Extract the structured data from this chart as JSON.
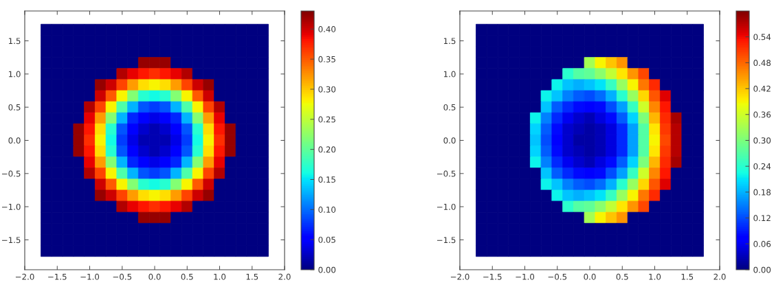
{
  "chart_data": [
    {
      "type": "heatmap",
      "x": [
        -1.667,
        -1.5,
        -1.333,
        -1.167,
        -1,
        -0.833,
        -0.667,
        -0.5,
        -0.333,
        -0.167,
        0,
        0.167,
        0.333,
        0.5,
        0.667,
        0.833,
        1,
        1.167,
        1.333,
        1.5,
        1.667
      ],
      "y": [
        1.667,
        1.5,
        1.333,
        1.167,
        1,
        0.833,
        0.667,
        0.5,
        0.333,
        0.167,
        0,
        -0.167,
        -0.333,
        -0.5,
        -0.667,
        -0.833,
        -1,
        -1.167,
        -1.333,
        -1.5,
        -1.667
      ],
      "cells": [
        [
          0,
          0,
          0,
          0,
          0,
          0,
          0,
          0,
          0,
          0,
          0,
          0,
          0,
          0,
          0,
          0,
          0,
          0,
          0,
          0,
          0
        ],
        [
          0,
          0,
          0,
          0,
          0,
          0,
          0,
          0,
          0,
          0,
          0,
          0,
          0,
          0,
          0,
          0,
          0,
          0,
          0,
          0,
          0
        ],
        [
          0,
          0,
          0,
          0,
          0,
          0,
          0,
          0,
          0,
          0,
          0,
          0,
          0,
          0,
          0,
          0,
          0,
          0,
          0,
          0,
          0
        ],
        [
          0,
          0,
          0,
          0,
          0,
          0,
          0,
          0,
          0,
          0.42,
          0.42,
          0.42,
          0,
          0,
          0,
          0,
          0,
          0,
          0,
          0,
          0
        ],
        [
          0,
          0,
          0,
          0,
          0,
          0,
          0,
          0.41,
          0.39,
          0.38,
          0.37,
          0.38,
          0.39,
          0.41,
          0,
          0,
          0,
          0,
          0,
          0,
          0
        ],
        [
          0,
          0,
          0,
          0,
          0,
          0.42,
          0.4,
          0.36,
          0.32,
          0.29,
          0.28,
          0.29,
          0.32,
          0.36,
          0.4,
          0.42,
          0,
          0,
          0,
          0,
          0
        ],
        [
          0,
          0,
          0,
          0,
          0,
          0.4,
          0.35,
          0.28,
          0.22,
          0.17,
          0.16,
          0.17,
          0.22,
          0.28,
          0.35,
          0.4,
          0,
          0,
          0,
          0,
          0
        ],
        [
          0,
          0,
          0,
          0,
          0.41,
          0.36,
          0.28,
          0.19,
          0.13,
          0.09,
          0.08,
          0.09,
          0.13,
          0.19,
          0.28,
          0.36,
          0.41,
          0,
          0,
          0,
          0
        ],
        [
          0,
          0,
          0,
          0,
          0.39,
          0.32,
          0.22,
          0.13,
          0.07,
          0.05,
          0.04,
          0.05,
          0.07,
          0.13,
          0.22,
          0.32,
          0.39,
          0,
          0,
          0,
          0
        ],
        [
          0,
          0,
          0,
          0.42,
          0.38,
          0.29,
          0.17,
          0.09,
          0.05,
          0.03,
          0.02,
          0.03,
          0.05,
          0.09,
          0.17,
          0.29,
          0.38,
          0.42,
          0,
          0,
          0
        ],
        [
          0,
          0,
          0,
          0.42,
          0.37,
          0.28,
          0.16,
          0.08,
          0.04,
          0.02,
          0.02,
          0.02,
          0.04,
          0.08,
          0.16,
          0.28,
          0.37,
          0.42,
          0,
          0,
          0
        ],
        [
          0,
          0,
          0,
          0.42,
          0.38,
          0.29,
          0.17,
          0.09,
          0.05,
          0.03,
          0.02,
          0.03,
          0.05,
          0.09,
          0.17,
          0.29,
          0.38,
          0.42,
          0,
          0,
          0
        ],
        [
          0,
          0,
          0,
          0,
          0.39,
          0.32,
          0.22,
          0.13,
          0.07,
          0.05,
          0.04,
          0.05,
          0.07,
          0.13,
          0.22,
          0.32,
          0.39,
          0,
          0,
          0,
          0
        ],
        [
          0,
          0,
          0,
          0,
          0.41,
          0.36,
          0.28,
          0.19,
          0.13,
          0.09,
          0.08,
          0.09,
          0.13,
          0.19,
          0.28,
          0.36,
          0.41,
          0,
          0,
          0,
          0
        ],
        [
          0,
          0,
          0,
          0,
          0,
          0.4,
          0.35,
          0.28,
          0.22,
          0.17,
          0.16,
          0.17,
          0.22,
          0.28,
          0.35,
          0.4,
          0,
          0,
          0,
          0,
          0
        ],
        [
          0,
          0,
          0,
          0,
          0,
          0.42,
          0.4,
          0.36,
          0.32,
          0.29,
          0.28,
          0.29,
          0.32,
          0.36,
          0.4,
          0.42,
          0,
          0,
          0,
          0,
          0
        ],
        [
          0,
          0,
          0,
          0,
          0,
          0,
          0,
          0.41,
          0.39,
          0.38,
          0.37,
          0.38,
          0.39,
          0.41,
          0,
          0,
          0,
          0,
          0,
          0,
          0
        ],
        [
          0,
          0,
          0,
          0,
          0,
          0,
          0,
          0,
          0,
          0.42,
          0.42,
          0.42,
          0,
          0,
          0,
          0,
          0,
          0,
          0,
          0,
          0
        ],
        [
          0,
          0,
          0,
          0,
          0,
          0,
          0,
          0,
          0,
          0,
          0,
          0,
          0,
          0,
          0,
          0,
          0,
          0,
          0,
          0,
          0
        ],
        [
          0,
          0,
          0,
          0,
          0,
          0,
          0,
          0,
          0,
          0,
          0,
          0,
          0,
          0,
          0,
          0,
          0,
          0,
          0,
          0,
          0
        ],
        [
          0,
          0,
          0,
          0,
          0,
          0,
          0,
          0,
          0,
          0,
          0,
          0,
          0,
          0,
          0,
          0,
          0,
          0,
          0,
          0,
          0
        ]
      ],
      "xlim": [
        -2,
        2
      ],
      "ylim": [
        -1.95,
        1.95
      ],
      "xticks": [
        {
          "value": -2,
          "label": "−2.0"
        },
        {
          "value": -1.5,
          "label": "−1.5"
        },
        {
          "value": -1,
          "label": "−1.0"
        },
        {
          "value": -0.5,
          "label": "−0.5"
        },
        {
          "value": 0,
          "label": "0.0"
        },
        {
          "value": 0.5,
          "label": "0.5"
        },
        {
          "value": 1,
          "label": "1.0"
        },
        {
          "value": 1.5,
          "label": "1.5"
        },
        {
          "value": 2,
          "label": "2.0"
        }
      ],
      "yticks": [
        {
          "value": -1.5,
          "label": "−1.5"
        },
        {
          "value": -1,
          "label": "−1.0"
        },
        {
          "value": -0.5,
          "label": "−0.5"
        },
        {
          "value": 0,
          "label": "0.0"
        },
        {
          "value": 0.5,
          "label": "0.5"
        },
        {
          "value": 1,
          "label": "1.0"
        },
        {
          "value": 1.5,
          "label": "1.5"
        }
      ],
      "clim": [
        0,
        0.43
      ],
      "cticks": [
        {
          "value": 0,
          "label": "0.00"
        },
        {
          "value": 0.05,
          "label": "0.05"
        },
        {
          "value": 0.1,
          "label": "0.10"
        },
        {
          "value": 0.15,
          "label": "0.15"
        },
        {
          "value": 0.2,
          "label": "0.20"
        },
        {
          "value": 0.25,
          "label": "0.25"
        },
        {
          "value": 0.3,
          "label": "0.30"
        },
        {
          "value": 0.35,
          "label": "0.35"
        },
        {
          "value": 0.4,
          "label": "0.40"
        }
      ]
    },
    {
      "type": "heatmap",
      "x": [
        -1.667,
        -1.5,
        -1.333,
        -1.167,
        -1,
        -0.833,
        -0.667,
        -0.5,
        -0.333,
        -0.167,
        0,
        0.167,
        0.333,
        0.5,
        0.667,
        0.833,
        1,
        1.167,
        1.333,
        1.5,
        1.667
      ],
      "y": [
        1.667,
        1.5,
        1.333,
        1.167,
        1,
        0.833,
        0.667,
        0.5,
        0.333,
        0.167,
        0,
        -0.167,
        -0.333,
        -0.5,
        -0.667,
        -0.833,
        -1,
        -1.167,
        -1.333,
        -1.5,
        -1.667
      ],
      "cells": [
        [
          0,
          0,
          0,
          0,
          0,
          0,
          0,
          0,
          0,
          0,
          0,
          0,
          0,
          0,
          0,
          0,
          0,
          0,
          0,
          0,
          0
        ],
        [
          0,
          0,
          0,
          0,
          0,
          0,
          0,
          0,
          0,
          0,
          0,
          0,
          0,
          0,
          0,
          0,
          0,
          0,
          0,
          0,
          0
        ],
        [
          0,
          0,
          0,
          0,
          0,
          0,
          0,
          0,
          0,
          0,
          0,
          0,
          0,
          0,
          0,
          0,
          0,
          0,
          0,
          0,
          0
        ],
        [
          0,
          0,
          0,
          0,
          0,
          0,
          0,
          0,
          0,
          0,
          0.33,
          0.39,
          0.42,
          0.45,
          0,
          0,
          0,
          0,
          0,
          0,
          0
        ],
        [
          0,
          0,
          0,
          0,
          0,
          0,
          0,
          0,
          0.24,
          0.27,
          0.28,
          0.31,
          0.35,
          0.4,
          0.45,
          0.5,
          0,
          0,
          0,
          0,
          0
        ],
        [
          0,
          0,
          0,
          0,
          0,
          0,
          0,
          0.22,
          0.19,
          0.18,
          0.19,
          0.21,
          0.25,
          0.32,
          0.39,
          0.47,
          0.52,
          0,
          0,
          0,
          0
        ],
        [
          0,
          0,
          0,
          0,
          0,
          0,
          0.22,
          0.19,
          0.15,
          0.13,
          0.12,
          0.14,
          0.18,
          0.24,
          0.32,
          0.41,
          0.49,
          0.55,
          0,
          0,
          0
        ],
        [
          0,
          0,
          0,
          0,
          0,
          0,
          0.19,
          0.13,
          0.1,
          0.08,
          0.07,
          0.08,
          0.12,
          0.17,
          0.25,
          0.36,
          0.46,
          0.53,
          0,
          0,
          0
        ],
        [
          0,
          0,
          0,
          0,
          0,
          0.22,
          0.15,
          0.1,
          0.06,
          0.04,
          0.03,
          0.05,
          0.08,
          0.13,
          0.2,
          0.3,
          0.43,
          0.52,
          0.58,
          0,
          0
        ],
        [
          0,
          0,
          0,
          0,
          0,
          0.2,
          0.13,
          0.08,
          0.04,
          0.03,
          0.02,
          0.03,
          0.05,
          0.1,
          0.17,
          0.27,
          0.4,
          0.51,
          0.57,
          0,
          0
        ],
        [
          0,
          0,
          0,
          0,
          0,
          0.19,
          0.12,
          0.07,
          0.04,
          0.02,
          0.02,
          0.03,
          0.05,
          0.1,
          0.17,
          0.27,
          0.39,
          0.5,
          0.57,
          0,
          0
        ],
        [
          0,
          0,
          0,
          0,
          0,
          0.2,
          0.13,
          0.08,
          0.04,
          0.03,
          0.02,
          0.03,
          0.05,
          0.1,
          0.17,
          0.27,
          0.4,
          0.51,
          0.57,
          0,
          0
        ],
        [
          0,
          0,
          0,
          0,
          0,
          0.22,
          0.15,
          0.1,
          0.06,
          0.04,
          0.03,
          0.05,
          0.08,
          0.13,
          0.2,
          0.3,
          0.43,
          0.52,
          0.58,
          0,
          0
        ],
        [
          0,
          0,
          0,
          0,
          0,
          0,
          0.19,
          0.13,
          0.1,
          0.08,
          0.07,
          0.08,
          0.12,
          0.17,
          0.25,
          0.36,
          0.46,
          0.53,
          0,
          0,
          0
        ],
        [
          0,
          0,
          0,
          0,
          0,
          0,
          0.22,
          0.19,
          0.15,
          0.13,
          0.12,
          0.14,
          0.18,
          0.24,
          0.32,
          0.41,
          0.49,
          0.55,
          0,
          0,
          0
        ],
        [
          0,
          0,
          0,
          0,
          0,
          0,
          0,
          0.22,
          0.19,
          0.18,
          0.19,
          0.21,
          0.25,
          0.32,
          0.39,
          0.47,
          0.52,
          0,
          0,
          0,
          0
        ],
        [
          0,
          0,
          0,
          0,
          0,
          0,
          0,
          0,
          0.24,
          0.27,
          0.28,
          0.31,
          0.35,
          0.4,
          0.45,
          0.5,
          0,
          0,
          0,
          0,
          0
        ],
        [
          0,
          0,
          0,
          0,
          0,
          0,
          0,
          0,
          0,
          0,
          0.33,
          0.39,
          0.42,
          0.45,
          0,
          0,
          0,
          0,
          0,
          0,
          0
        ],
        [
          0,
          0,
          0,
          0,
          0,
          0,
          0,
          0,
          0,
          0,
          0,
          0,
          0,
          0,
          0,
          0,
          0,
          0,
          0,
          0,
          0
        ],
        [
          0,
          0,
          0,
          0,
          0,
          0,
          0,
          0,
          0,
          0,
          0,
          0,
          0,
          0,
          0,
          0,
          0,
          0,
          0,
          0,
          0
        ],
        [
          0,
          0,
          0,
          0,
          0,
          0,
          0,
          0,
          0,
          0,
          0,
          0,
          0,
          0,
          0,
          0,
          0,
          0,
          0,
          0,
          0
        ]
      ],
      "xlim": [
        -2,
        2
      ],
      "ylim": [
        -1.95,
        1.95
      ],
      "xticks": [
        {
          "value": -2,
          "label": "−2.0"
        },
        {
          "value": -1.5,
          "label": "−1.5"
        },
        {
          "value": -1,
          "label": "−1.0"
        },
        {
          "value": -0.5,
          "label": "−0.5"
        },
        {
          "value": 0,
          "label": "0.0"
        },
        {
          "value": 0.5,
          "label": "0.5"
        },
        {
          "value": 1,
          "label": "1.0"
        },
        {
          "value": 1.5,
          "label": "1.5"
        },
        {
          "value": 2,
          "label": "2.0"
        }
      ],
      "yticks": [
        {
          "value": -1.5,
          "label": "−1.5"
        },
        {
          "value": -1,
          "label": "−1.0"
        },
        {
          "value": -0.5,
          "label": "−0.5"
        },
        {
          "value": 0,
          "label": "0.0"
        },
        {
          "value": 0.5,
          "label": "0.5"
        },
        {
          "value": 1,
          "label": "1.0"
        },
        {
          "value": 1.5,
          "label": "1.5"
        }
      ],
      "clim": [
        0,
        0.6
      ],
      "cticks": [
        {
          "value": 0,
          "label": "0.00"
        },
        {
          "value": 0.06,
          "label": "0.06"
        },
        {
          "value": 0.12,
          "label": "0.12"
        },
        {
          "value": 0.18,
          "label": "0.18"
        },
        {
          "value": 0.24,
          "label": "0.24"
        },
        {
          "value": 0.3,
          "label": "0.30"
        },
        {
          "value": 0.36,
          "label": "0.36"
        },
        {
          "value": 0.42,
          "label": "0.42"
        },
        {
          "value": 0.48,
          "label": "0.48"
        },
        {
          "value": 0.54,
          "label": "0.54"
        }
      ]
    }
  ]
}
